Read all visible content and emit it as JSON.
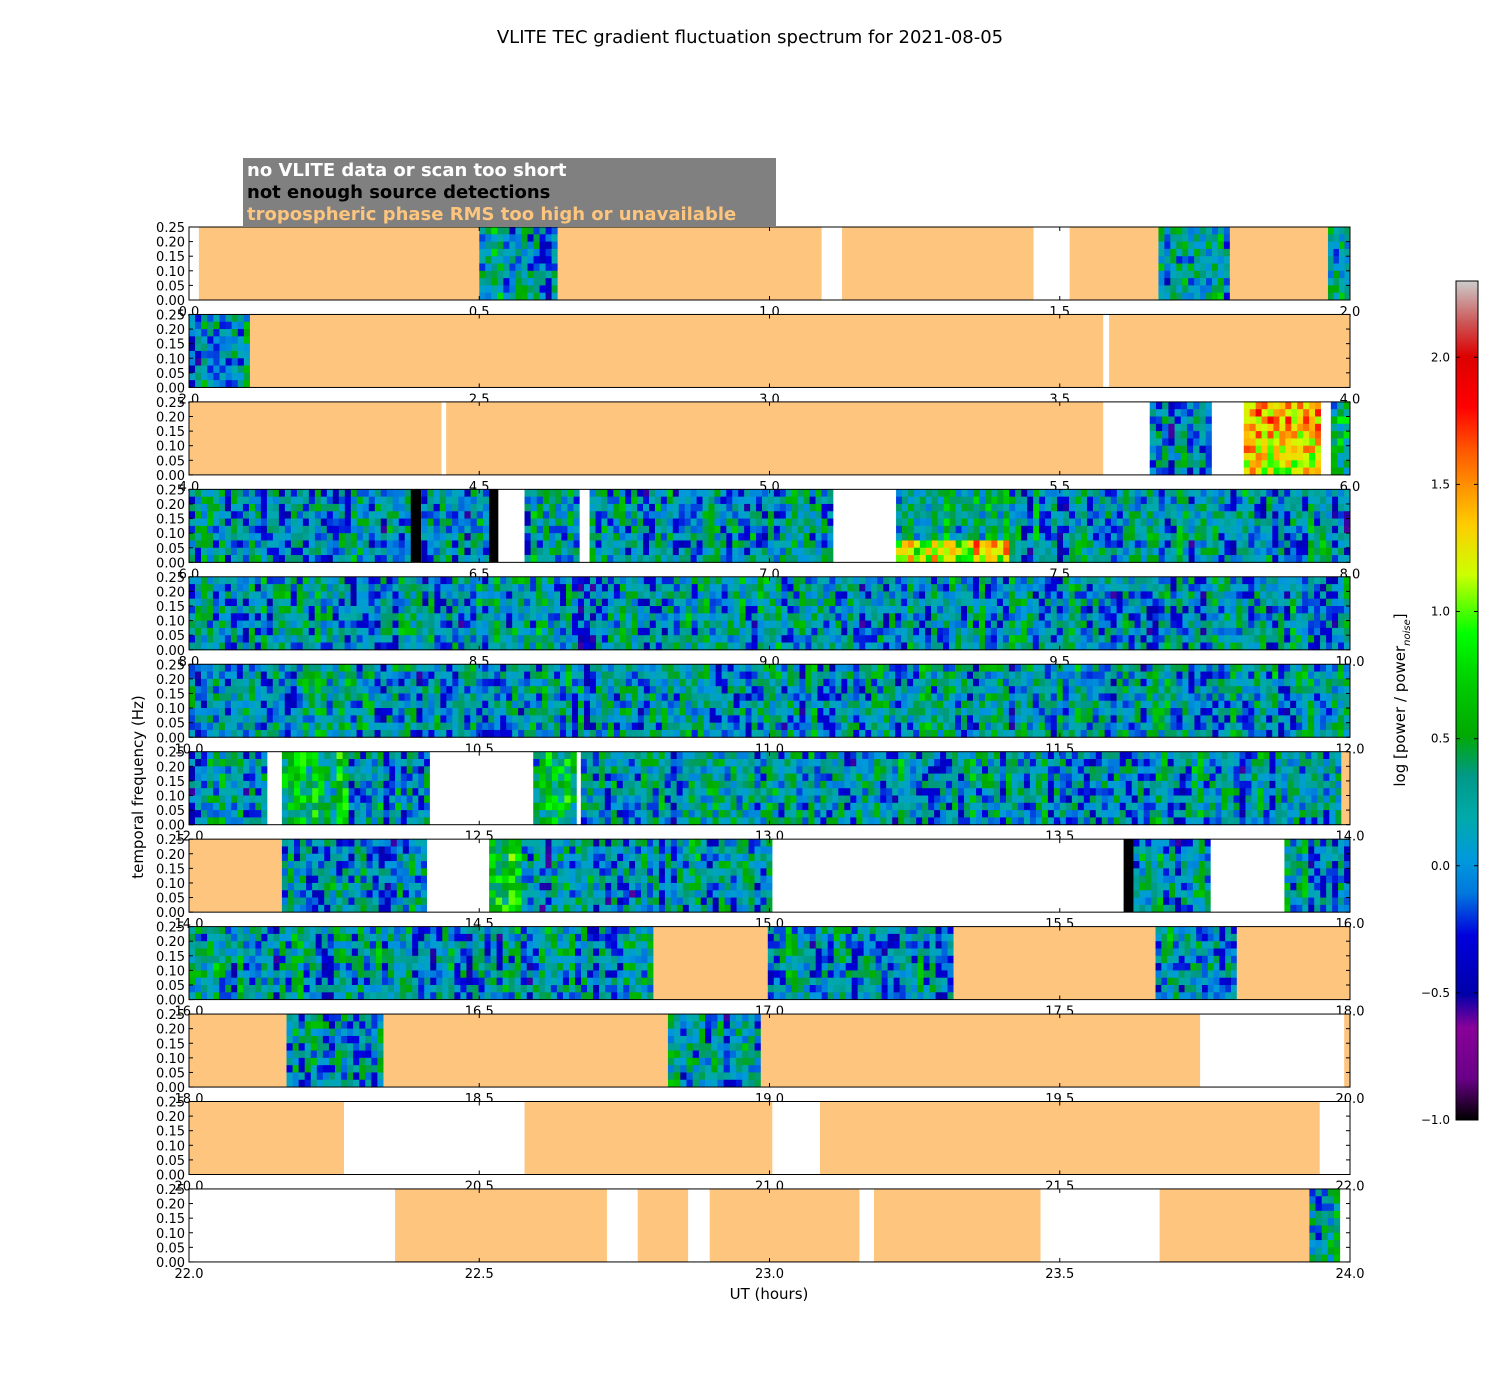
{
  "title": "VLITE TEC gradient fluctuation spectrum for 2021-08-05",
  "legend": [
    {
      "label": "no VLITE data or scan too short",
      "color": "#ffffff"
    },
    {
      "label": "not enough source detections",
      "color": "#000000"
    },
    {
      "label": "tropospheric phase RMS too high or unavailable",
      "color": "#fdc57e"
    }
  ],
  "legend_box_color": "#808080",
  "ylabel": "temporal frequency (Hz)",
  "xlabel": "UT (hours)",
  "colorbar_label": "log [power / power",
  "colorbar_label_sub": "noise",
  "colorbar_label_end": "]",
  "colors": {
    "troposphere": "#fdc57e",
    "no_data": "#ffffff",
    "no_detections": "#000000"
  },
  "chart_data": {
    "type": "heatmap",
    "title": "VLITE TEC gradient fluctuation spectrum for 2021-08-05",
    "xlabel": "UT (hours)",
    "ylabel": "temporal frequency (Hz)",
    "ylim": [
      0,
      0.25
    ],
    "yticks": [
      "0.00",
      "0.05",
      "0.10",
      "0.15",
      "0.20",
      "0.25"
    ],
    "colorbar": {
      "label": "log [power / power_noise]",
      "range": [
        -1.0,
        2.3
      ],
      "ticks": [
        "−1.0",
        "−0.5",
        "0.0",
        "0.5",
        "1.0",
        "1.5",
        "2.0"
      ],
      "colormap": "spectral"
    },
    "panels": [
      {
        "range": [
          0,
          2
        ],
        "xticks": [
          "0.0",
          "0.5",
          "1.0",
          "1.5",
          "2.0"
        ],
        "segments": [
          {
            "start": 0.0,
            "end": 0.017,
            "state": "nodata"
          },
          {
            "start": 0.017,
            "end": 0.5,
            "state": "trop"
          },
          {
            "start": 0.5,
            "end": 0.635,
            "state": "data",
            "level": 0.15
          },
          {
            "start": 0.635,
            "end": 1.09,
            "state": "trop"
          },
          {
            "start": 1.09,
            "end": 1.125,
            "state": "nodata"
          },
          {
            "start": 1.125,
            "end": 1.455,
            "state": "trop"
          },
          {
            "start": 1.455,
            "end": 1.517,
            "state": "nodata"
          },
          {
            "start": 1.517,
            "end": 1.67,
            "state": "trop"
          },
          {
            "start": 1.67,
            "end": 1.793,
            "state": "data",
            "level": 0.1
          },
          {
            "start": 1.793,
            "end": 1.962,
            "state": "trop"
          },
          {
            "start": 1.962,
            "end": 2.0,
            "state": "data",
            "level": 0.1
          }
        ]
      },
      {
        "range": [
          2,
          4
        ],
        "xticks": [
          "2.0",
          "2.5",
          "3.0",
          "3.5",
          "4.0"
        ],
        "segments": [
          {
            "start": 2.0,
            "end": 2.105,
            "state": "data",
            "level": 0.1
          },
          {
            "start": 2.105,
            "end": 3.575,
            "state": "trop"
          },
          {
            "start": 3.575,
            "end": 3.585,
            "state": "nodata"
          },
          {
            "start": 3.585,
            "end": 4.0,
            "state": "trop"
          }
        ]
      },
      {
        "range": [
          4,
          6
        ],
        "xticks": [
          "4.0",
          "4.5",
          "5.0",
          "5.5",
          "6.0"
        ],
        "segments": [
          {
            "start": 4.0,
            "end": 4.435,
            "state": "trop"
          },
          {
            "start": 4.435,
            "end": 4.443,
            "state": "nodata"
          },
          {
            "start": 4.443,
            "end": 5.575,
            "state": "trop"
          },
          {
            "start": 5.575,
            "end": 5.655,
            "state": "nodata"
          },
          {
            "start": 5.655,
            "end": 5.762,
            "state": "data",
            "level": 0.1
          },
          {
            "start": 5.762,
            "end": 5.817,
            "state": "nodata"
          },
          {
            "start": 5.817,
            "end": 5.95,
            "state": "data",
            "level": 1.5
          },
          {
            "start": 5.95,
            "end": 5.967,
            "state": "nodata"
          },
          {
            "start": 5.967,
            "end": 6.0,
            "state": "data",
            "level": 0.3
          }
        ]
      },
      {
        "range": [
          6,
          8
        ],
        "xticks": [
          "6.0",
          "6.5",
          "7.0",
          "7.5",
          "8.0"
        ],
        "segments": [
          {
            "start": 6.0,
            "end": 6.382,
            "state": "data",
            "level": 0.1
          },
          {
            "start": 6.382,
            "end": 6.4,
            "state": "nodetect"
          },
          {
            "start": 6.4,
            "end": 6.517,
            "state": "data",
            "level": 0.1
          },
          {
            "start": 6.517,
            "end": 6.533,
            "state": "nodetect"
          },
          {
            "start": 6.533,
            "end": 6.578,
            "state": "nodata"
          },
          {
            "start": 6.578,
            "end": 6.673,
            "state": "data",
            "level": 0.1
          },
          {
            "start": 6.673,
            "end": 6.69,
            "state": "nodata"
          },
          {
            "start": 6.69,
            "end": 7.11,
            "state": "data",
            "level": 0.1
          },
          {
            "start": 7.11,
            "end": 7.218,
            "state": "nodata"
          },
          {
            "start": 7.218,
            "end": 7.413,
            "state": "data",
            "level": 0.8
          },
          {
            "start": 7.413,
            "end": 8.0,
            "state": "data",
            "level": 0.1
          }
        ]
      },
      {
        "range": [
          8,
          10
        ],
        "xticks": [
          "8.0",
          "8.5",
          "9.0",
          "9.5",
          "10.0"
        ],
        "segments": [
          {
            "start": 8.0,
            "end": 10.0,
            "state": "data",
            "level": 0.1
          }
        ]
      },
      {
        "range": [
          10,
          12
        ],
        "xticks": [
          "10.0",
          "10.5",
          "11.0",
          "11.5",
          "12.0"
        ],
        "segments": [
          {
            "start": 10.0,
            "end": 12.0,
            "state": "data",
            "level": 0.1
          }
        ]
      },
      {
        "range": [
          12,
          14
        ],
        "xticks": [
          "12.0",
          "12.5",
          "13.0",
          "13.5",
          "14.0"
        ],
        "segments": [
          {
            "start": 12.0,
            "end": 12.135,
            "state": "data",
            "level": 0.1
          },
          {
            "start": 12.135,
            "end": 12.16,
            "state": "nodata"
          },
          {
            "start": 12.16,
            "end": 12.275,
            "state": "data",
            "level": 0.5
          },
          {
            "start": 12.275,
            "end": 12.415,
            "state": "data",
            "level": 0.1
          },
          {
            "start": 12.415,
            "end": 12.593,
            "state": "nodata"
          },
          {
            "start": 12.593,
            "end": 12.668,
            "state": "data",
            "level": 0.4
          },
          {
            "start": 12.668,
            "end": 12.675,
            "state": "nodata"
          },
          {
            "start": 12.675,
            "end": 13.985,
            "state": "data",
            "level": 0.1
          },
          {
            "start": 13.985,
            "end": 14.0,
            "state": "trop"
          }
        ]
      },
      {
        "range": [
          14,
          16
        ],
        "xticks": [
          "14.0",
          "14.5",
          "15.0",
          "15.5",
          "16.0"
        ],
        "segments": [
          {
            "start": 14.0,
            "end": 14.16,
            "state": "trop"
          },
          {
            "start": 14.16,
            "end": 14.41,
            "state": "data",
            "level": 0.1
          },
          {
            "start": 14.41,
            "end": 14.517,
            "state": "nodata"
          },
          {
            "start": 14.517,
            "end": 14.573,
            "state": "data",
            "level": 0.5
          },
          {
            "start": 14.573,
            "end": 15.005,
            "state": "data",
            "level": 0.1
          },
          {
            "start": 15.005,
            "end": 15.61,
            "state": "nodata"
          },
          {
            "start": 15.61,
            "end": 15.627,
            "state": "nodetect"
          },
          {
            "start": 15.627,
            "end": 15.76,
            "state": "data",
            "level": 0.1
          },
          {
            "start": 15.76,
            "end": 15.887,
            "state": "nodata"
          },
          {
            "start": 15.887,
            "end": 16.0,
            "state": "data",
            "level": 0.1
          }
        ]
      },
      {
        "range": [
          16,
          18
        ],
        "xticks": [
          "16.0",
          "16.5",
          "17.0",
          "17.5",
          "18.0"
        ],
        "segments": [
          {
            "start": 16.0,
            "end": 16.8,
            "state": "data",
            "level": 0.1
          },
          {
            "start": 16.8,
            "end": 16.997,
            "state": "trop"
          },
          {
            "start": 16.997,
            "end": 17.317,
            "state": "data",
            "level": 0.1
          },
          {
            "start": 17.317,
            "end": 17.665,
            "state": "trop"
          },
          {
            "start": 17.665,
            "end": 17.805,
            "state": "data",
            "level": 0.1
          },
          {
            "start": 17.805,
            "end": 18.0,
            "state": "trop"
          }
        ]
      },
      {
        "range": [
          18,
          20
        ],
        "xticks": [
          "18.0",
          "18.5",
          "19.0",
          "19.5",
          "20.0"
        ],
        "segments": [
          {
            "start": 18.0,
            "end": 18.168,
            "state": "trop"
          },
          {
            "start": 18.168,
            "end": 18.335,
            "state": "data",
            "level": 0.1
          },
          {
            "start": 18.335,
            "end": 18.825,
            "state": "trop"
          },
          {
            "start": 18.825,
            "end": 18.985,
            "state": "data",
            "level": 0.1
          },
          {
            "start": 18.985,
            "end": 19.742,
            "state": "trop"
          },
          {
            "start": 19.742,
            "end": 19.99,
            "state": "nodata"
          },
          {
            "start": 19.99,
            "end": 20.0,
            "state": "trop"
          }
        ]
      },
      {
        "range": [
          20,
          22
        ],
        "xticks": [
          "20.0",
          "20.5",
          "21.0",
          "21.5",
          "22.0"
        ],
        "segments": [
          {
            "start": 20.0,
            "end": 20.267,
            "state": "trop"
          },
          {
            "start": 20.267,
            "end": 20.578,
            "state": "nodata"
          },
          {
            "start": 20.578,
            "end": 21.005,
            "state": "trop"
          },
          {
            "start": 21.005,
            "end": 21.087,
            "state": "nodata"
          },
          {
            "start": 21.087,
            "end": 21.948,
            "state": "trop"
          },
          {
            "start": 21.948,
            "end": 22.0,
            "state": "nodata"
          }
        ]
      },
      {
        "range": [
          22,
          24
        ],
        "xticks": [
          "22.0",
          "22.5",
          "23.0",
          "23.5",
          "24.0"
        ],
        "segments": [
          {
            "start": 22.0,
            "end": 22.355,
            "state": "nodata"
          },
          {
            "start": 22.355,
            "end": 22.72,
            "state": "trop"
          },
          {
            "start": 22.72,
            "end": 22.773,
            "state": "nodata"
          },
          {
            "start": 22.773,
            "end": 22.86,
            "state": "trop"
          },
          {
            "start": 22.86,
            "end": 22.897,
            "state": "nodata"
          },
          {
            "start": 22.897,
            "end": 23.155,
            "state": "trop"
          },
          {
            "start": 23.155,
            "end": 23.18,
            "state": "nodata"
          },
          {
            "start": 23.18,
            "end": 23.467,
            "state": "trop"
          },
          {
            "start": 23.467,
            "end": 23.672,
            "state": "nodata"
          },
          {
            "start": 23.672,
            "end": 23.93,
            "state": "trop"
          },
          {
            "start": 23.93,
            "end": 23.983,
            "state": "data",
            "level": 0.3
          },
          {
            "start": 23.983,
            "end": 24.0,
            "state": "nodata"
          }
        ]
      }
    ]
  }
}
